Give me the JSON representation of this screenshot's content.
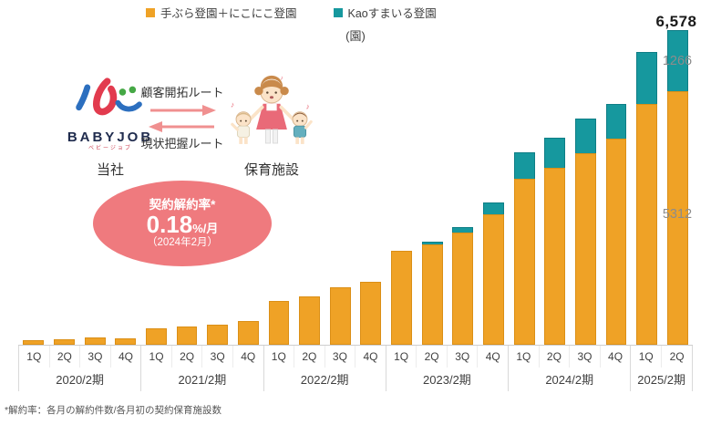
{
  "legend": [
    {
      "label": "手ぶら登園＋にこにこ登園",
      "color": "#EFA226"
    },
    {
      "label": "Kaoすまいる登園",
      "color": "#16989E"
    }
  ],
  "unit_label": "(園)",
  "annotation": {
    "company_logo_text": "BABYJOB",
    "company_logo_subtext": "ベビージョブ",
    "company_label": "当社",
    "route_top": "顧客開拓ルート",
    "route_bottom": "現状把握ルート",
    "facility_label": "保育施設"
  },
  "churn_badge": {
    "title": "契約解約率*",
    "rate": "0.18",
    "rate_suffix": "%/月",
    "period": "（2024年2月）"
  },
  "value_labels": {
    "last_total": "6,578",
    "last_teal": "1266",
    "last_orange": "5312"
  },
  "footnote": "*解約率：各月の解約件数/各月初の契約保育施設数",
  "chart_data": {
    "type": "bar",
    "subtype": "stacked",
    "unit": "園",
    "ylim": [
      0,
      6578
    ],
    "grid": false,
    "legend_position": "top",
    "year_groups": [
      {
        "label": "2020/2期",
        "quarters": [
          "1Q",
          "2Q",
          "3Q",
          "4Q"
        ]
      },
      {
        "label": "2021/2期",
        "quarters": [
          "1Q",
          "2Q",
          "3Q",
          "4Q"
        ]
      },
      {
        "label": "2022/2期",
        "quarters": [
          "1Q",
          "2Q",
          "3Q",
          "4Q"
        ]
      },
      {
        "label": "2023/2期",
        "quarters": [
          "1Q",
          "2Q",
          "3Q",
          "4Q"
        ]
      },
      {
        "label": "2024/2期",
        "quarters": [
          "1Q",
          "2Q",
          "3Q",
          "4Q"
        ]
      },
      {
        "label": "2025/2期",
        "quarters": [
          "1Q",
          "2Q"
        ]
      }
    ],
    "categories": [
      "2020-1Q",
      "2020-2Q",
      "2020-3Q",
      "2020-4Q",
      "2021-1Q",
      "2021-2Q",
      "2021-3Q",
      "2021-4Q",
      "2022-1Q",
      "2022-2Q",
      "2022-3Q",
      "2022-4Q",
      "2023-1Q",
      "2023-2Q",
      "2023-3Q",
      "2023-4Q",
      "2024-1Q",
      "2024-2Q",
      "2024-3Q",
      "2024-4Q",
      "2025-1Q",
      "2025-2Q"
    ],
    "series": [
      {
        "name": "手ぶら登園＋にこにこ登園",
        "color": "#EFA226",
        "values": [
          60,
          80,
          110,
          95,
          310,
          340,
          390,
          455,
          890,
          990,
          1165,
          1280,
          1950,
          2070,
          2320,
          2710,
          3465,
          3700,
          4005,
          4315,
          5030,
          5312
        ]
      },
      {
        "name": "Kaoすまいる登園",
        "color": "#16989E",
        "values": [
          0,
          0,
          0,
          0,
          0,
          0,
          0,
          0,
          0,
          0,
          0,
          0,
          0,
          40,
          100,
          230,
          540,
          615,
          715,
          715,
          1085,
          1266
        ]
      }
    ],
    "totals": [
      60,
      80,
      110,
      95,
      310,
      340,
      390,
      455,
      890,
      990,
      1165,
      1280,
      1950,
      2110,
      2420,
      2940,
      4005,
      4315,
      4720,
      5030,
      6115,
      6578
    ],
    "annotated_points": [
      {
        "category": "2025-2Q",
        "total": 6578,
        "orange": 5312,
        "teal": 1266
      }
    ]
  }
}
